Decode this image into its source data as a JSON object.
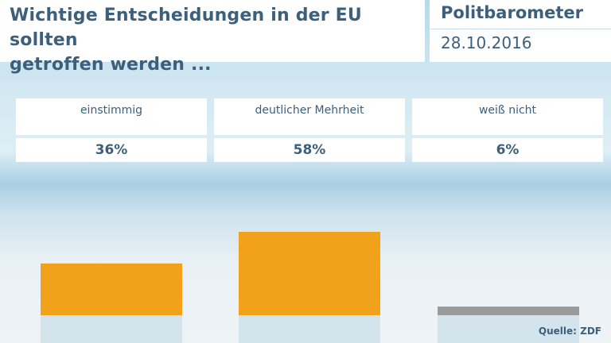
{
  "header": {
    "title_line1": "Wichtige Entscheidungen in der EU sollten",
    "title_line2": "getroffen werden ...",
    "brand": "Politbarometer",
    "date": "28.10.2016"
  },
  "source": "Quelle: ZDF",
  "colors": {
    "main_bar": "#f2a11b",
    "other_bar": "#9a9a9a",
    "text": "#3c5f7c"
  },
  "chart_data": {
    "type": "bar",
    "title": "Wichtige Entscheidungen in der EU sollten getroffen werden ...",
    "categories": [
      "einstimmig",
      "deutlicher Mehrheit",
      "weiß nicht"
    ],
    "values": [
      36,
      58,
      6
    ],
    "value_labels": [
      "36%",
      "58%",
      "6%"
    ],
    "bar_colors": [
      "#f2a11b",
      "#f2a11b",
      "#9a9a9a"
    ],
    "unit": "%"
  }
}
